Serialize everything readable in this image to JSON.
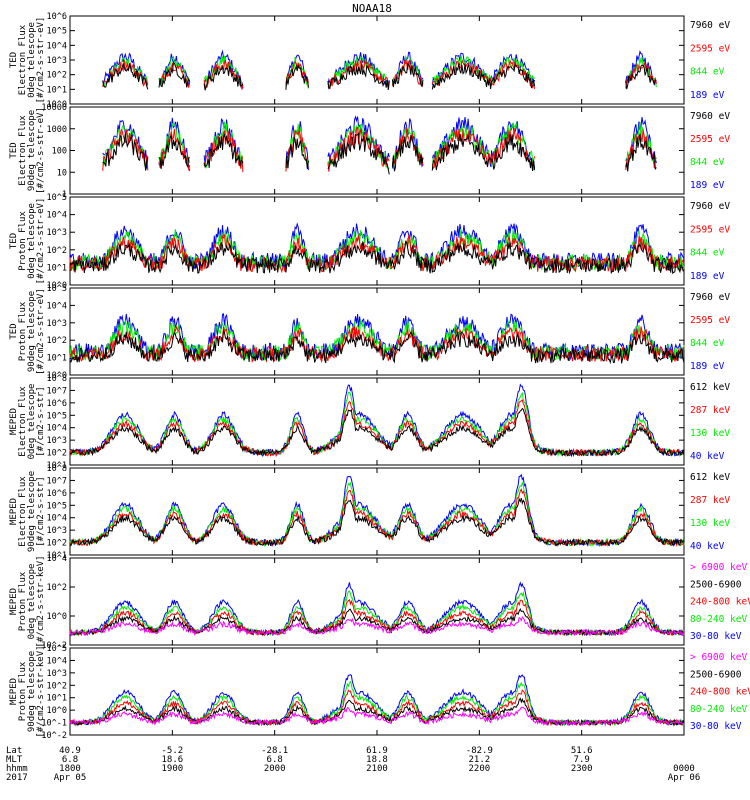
{
  "title": "NOAA18",
  "colors": {
    "black": "#000000",
    "red": "#ff0000",
    "green": "#00ee00",
    "blue": "#0000ff",
    "magenta": "#ff00ff"
  },
  "time_axis": {
    "rows": [
      {
        "label": "Lat",
        "values": [
          "40.9",
          "-5.2",
          "-28.1",
          "61.9",
          "-82.9",
          "51.6",
          ""
        ]
      },
      {
        "label": "MLT",
        "values": [
          "6.8",
          "18.6",
          "6.8",
          "18.8",
          "21.2",
          "7.9",
          ""
        ]
      },
      {
        "label": "hhmm",
        "values": [
          "1800",
          "1900",
          "2000",
          "2100",
          "2200",
          "2300",
          "0000"
        ]
      },
      {
        "label": "2017",
        "values": [
          "Apr 05",
          "",
          "",
          "",
          "",
          "",
          "Apr 06"
        ]
      }
    ]
  },
  "chart_data": {
    "type": "line",
    "title": "NOAA18",
    "x_range": [
      "2017-04-05 18:00",
      "2017-04-06 00:00"
    ],
    "panels": [
      {
        "name": "TED 0deg electron",
        "ylabel": [
          "TED",
          "Electron Flux",
          "0deg telescope",
          "[#/cm2-s-str-eV]"
        ],
        "yscale": "log",
        "ylim": [
          1,
          1000000
        ],
        "ytick_labels": [
          "10^0",
          "10^1",
          "10^2",
          "10^3",
          "10^4",
          "10^5",
          "10^6"
        ],
        "legend": [
          {
            "text": "7960 eV",
            "color": "#000000"
          },
          {
            "text": "2595 eV",
            "color": "#ff0000"
          },
          {
            "text": "844 eV",
            "color": "#00ee00"
          },
          {
            "text": "189 eV",
            "color": "#0000ff"
          }
        ]
      },
      {
        "name": "TED 90deg electron",
        "ylabel": [
          "TED",
          "Electron Flux",
          "90deg telescope",
          "[#/cm2-s-str-eV]"
        ],
        "yscale": "log",
        "ylim": [
          1,
          10000
        ],
        "ytick_labels": [
          "1",
          "10",
          "100",
          "1000",
          "10000"
        ],
        "legend": [
          {
            "text": "7960 eV",
            "color": "#000000"
          },
          {
            "text": "2595 eV",
            "color": "#ff0000"
          },
          {
            "text": "844 eV",
            "color": "#00ee00"
          },
          {
            "text": "189 eV",
            "color": "#0000ff"
          }
        ]
      },
      {
        "name": "TED 0deg proton",
        "ylabel": [
          "TED",
          "Proton Flux",
          "0deg telescope",
          "[#/cm2-s-str-eV]"
        ],
        "yscale": "log",
        "ylim": [
          1,
          100000
        ],
        "ytick_labels": [
          "10^0",
          "10^1",
          "10^2",
          "10^3",
          "10^4",
          "10^5"
        ],
        "legend": [
          {
            "text": "7960 eV",
            "color": "#000000"
          },
          {
            "text": "2595 eV",
            "color": "#ff0000"
          },
          {
            "text": "844 eV",
            "color": "#00ee00"
          },
          {
            "text": "189 eV",
            "color": "#0000ff"
          }
        ]
      },
      {
        "name": "TED 90deg proton",
        "ylabel": [
          "TED",
          "Proton Flux",
          "90deg telescope",
          "[#/cm2-s-str-eV]"
        ],
        "yscale": "log",
        "ylim": [
          1,
          100000
        ],
        "ytick_labels": [
          "10^0",
          "10^1",
          "10^2",
          "10^3",
          "10^4",
          "10^5"
        ],
        "legend": [
          {
            "text": "7960 eV",
            "color": "#000000"
          },
          {
            "text": "2595 eV",
            "color": "#ff0000"
          },
          {
            "text": "844 eV",
            "color": "#00ee00"
          },
          {
            "text": "189 eV",
            "color": "#0000ff"
          }
        ]
      },
      {
        "name": "MEPED 0deg electron",
        "ylabel": [
          "MEPED",
          "Electron Flux",
          "0deg telescope",
          "[#/cm2-s-str]"
        ],
        "yscale": "log",
        "ylim": [
          10,
          100000000
        ],
        "ytick_labels": [
          "10^1",
          "10^2",
          "10^3",
          "10^4",
          "10^5",
          "10^6",
          "10^7",
          "10^8"
        ],
        "legend": [
          {
            "text": "612 keV",
            "color": "#000000"
          },
          {
            "text": "287 keV",
            "color": "#ff0000"
          },
          {
            "text": "130 keV",
            "color": "#00ee00"
          },
          {
            "text": "40 keV",
            "color": "#0000ff"
          }
        ]
      },
      {
        "name": "MEPED 90deg electron",
        "ylabel": [
          "MEPED",
          "Electron Flux",
          "90deg telescope",
          "[#/cm2-s-str]"
        ],
        "yscale": "log",
        "ylim": [
          10,
          100000000
        ],
        "ytick_labels": [
          "10^1",
          "10^2",
          "10^3",
          "10^4",
          "10^5",
          "10^6",
          "10^7",
          "10^8"
        ],
        "legend": [
          {
            "text": "612 keV",
            "color": "#000000"
          },
          {
            "text": "287 keV",
            "color": "#ff0000"
          },
          {
            "text": "130 keV",
            "color": "#00ee00"
          },
          {
            "text": "40 keV",
            "color": "#0000ff"
          }
        ]
      },
      {
        "name": "MEPED 0deg proton",
        "ylabel": [
          "MEPED",
          "Proton Flux",
          "0deg telescope",
          "[#/cm2-s-str-keV]"
        ],
        "yscale": "log",
        "ylim": [
          0.01,
          100000
        ],
        "ytick_labels": [
          "10^-2",
          "10^0",
          "10^2",
          "10^4"
        ],
        "legend": [
          {
            "text": "> 6900 keV",
            "color": "#ff00ff"
          },
          {
            "text": "2500-6900",
            "color": "#000000"
          },
          {
            "text": "240-800 keV",
            "color": "#ff0000"
          },
          {
            "text": "80-240 keV",
            "color": "#00ee00"
          },
          {
            "text": "30-80 keV",
            "color": "#0000ff"
          }
        ]
      },
      {
        "name": "MEPED 90deg proton",
        "ylabel": [
          "MEPED",
          "Proton Flux",
          "90deg telescope",
          "[#/cm2-s-str-keV]"
        ],
        "yscale": "log",
        "ylim": [
          0.01,
          100000
        ],
        "ytick_labels": [
          "10^-2",
          "10^-1",
          "10^0",
          "10^1",
          "10^2",
          "10^3",
          "10^4",
          "10^5"
        ],
        "legend": [
          {
            "text": "> 6900 keV",
            "color": "#ff00ff"
          },
          {
            "text": "2500-6900",
            "color": "#000000"
          },
          {
            "text": "240-800 keV",
            "color": "#ff0000"
          },
          {
            "text": "80-240 keV",
            "color": "#00ee00"
          },
          {
            "text": "30-80 keV",
            "color": "#0000ff"
          }
        ]
      }
    ]
  }
}
